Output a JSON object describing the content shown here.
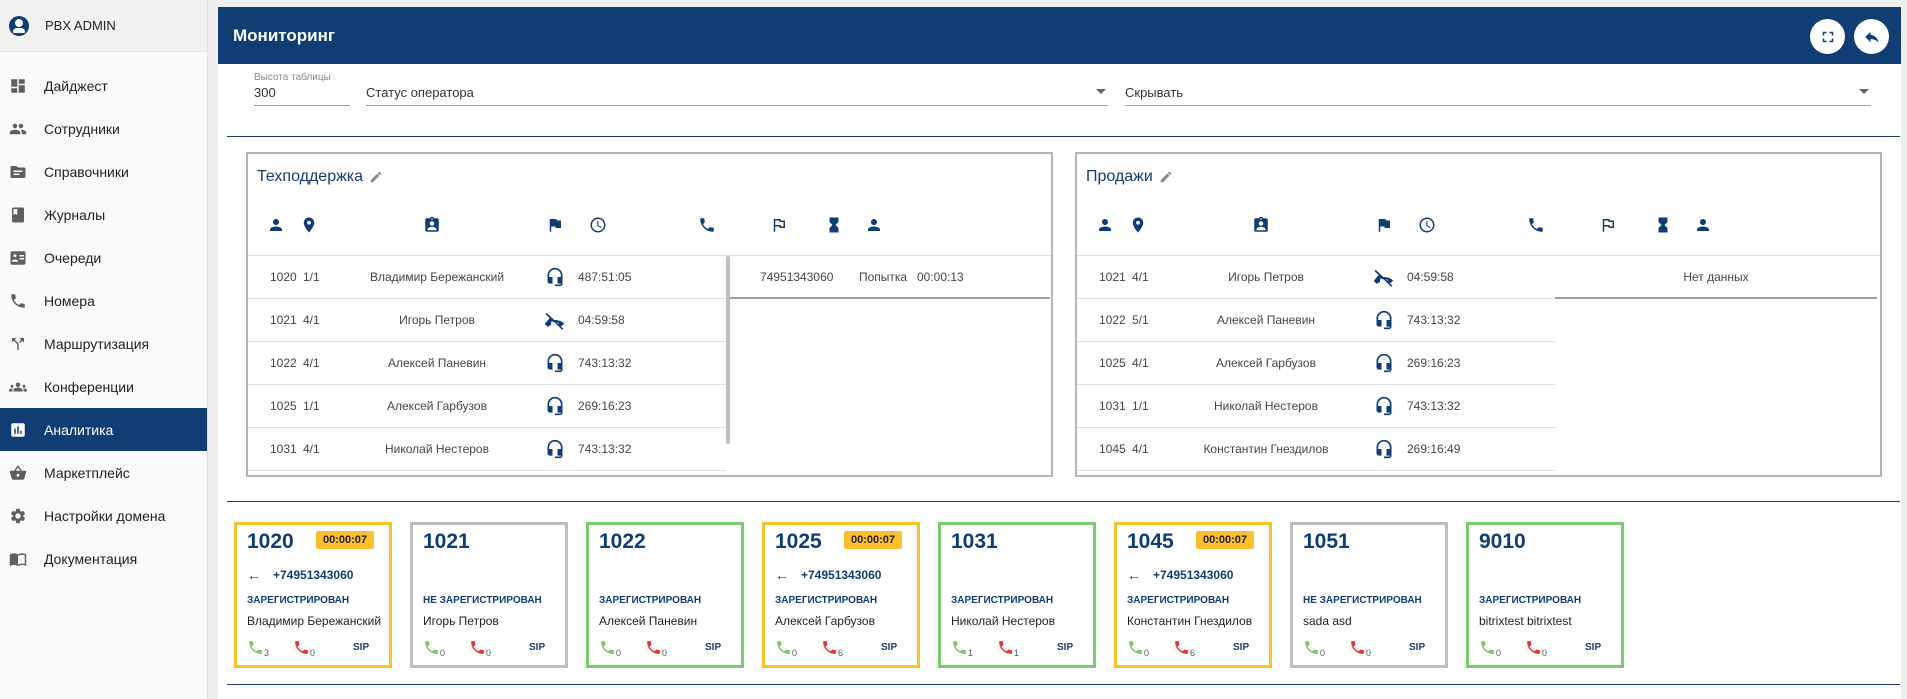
{
  "sidebar": {
    "user": "PBX ADMIN",
    "items": [
      {
        "label": "Дайджест",
        "icon": "dashboard-icon"
      },
      {
        "label": "Сотрудники",
        "icon": "people-icon"
      },
      {
        "label": "Справочники",
        "icon": "folder-icon"
      },
      {
        "label": "Журналы",
        "icon": "book-icon"
      },
      {
        "label": "Очереди",
        "icon": "queue-icon"
      },
      {
        "label": "Номера",
        "icon": "phone-icon"
      },
      {
        "label": "Маршрутизация",
        "icon": "route-icon"
      },
      {
        "label": "Конференции",
        "icon": "groups-icon"
      },
      {
        "label": "Аналитика",
        "icon": "analytics-icon"
      },
      {
        "label": "Маркетплейс",
        "icon": "basket-icon"
      },
      {
        "label": "Настройки домена",
        "icon": "gear-icon"
      },
      {
        "label": "Документация",
        "icon": "docs-icon"
      }
    ],
    "active_index": 8
  },
  "header": {
    "title": "Мониторинг"
  },
  "filters": {
    "height_label": "Высота таблицы",
    "height_value": "300",
    "status_value": "Статус оператора",
    "hide_value": "Скрывать"
  },
  "groups": [
    {
      "title": "Техподдержка",
      "rows": [
        {
          "ext": "1020",
          "pos": "1/1",
          "name": "Владимир Бережанский",
          "status": "headset-icon",
          "time": "487:51:05"
        },
        {
          "ext": "1021",
          "pos": "4/1",
          "name": "Игорь Петров",
          "status": "phone-off-icon",
          "time": "04:59:58"
        },
        {
          "ext": "1022",
          "pos": "4/1",
          "name": "Алексей Паневин",
          "status": "headset-icon",
          "time": "743:13:32"
        },
        {
          "ext": "1025",
          "pos": "1/1",
          "name": "Алексей Гарбузов",
          "status": "headset-icon",
          "time": "269:16:23"
        },
        {
          "ext": "1031",
          "pos": "4/1",
          "name": "Николай Нестеров",
          "status": "headset-icon",
          "time": "743:13:32"
        }
      ],
      "calls": [
        {
          "number": "74951343060",
          "state": "Попытка",
          "duration": "00:00:13"
        }
      ]
    },
    {
      "title": "Продажи",
      "rows": [
        {
          "ext": "1021",
          "pos": "4/1",
          "name": "Игорь Петров",
          "status": "phone-off-icon",
          "time": "04:59:58"
        },
        {
          "ext": "1022",
          "pos": "5/1",
          "name": "Алексей Паневин",
          "status": "headset-icon",
          "time": "743:13:32"
        },
        {
          "ext": "1025",
          "pos": "4/1",
          "name": "Алексей Гарбузов",
          "status": "headset-icon",
          "time": "269:16:23"
        },
        {
          "ext": "1031",
          "pos": "1/1",
          "name": "Николай Нестеров",
          "status": "headset-icon",
          "time": "743:13:32"
        },
        {
          "ext": "1045",
          "pos": "4/1",
          "name": "Константин Гнездилов",
          "status": "headset-icon",
          "time": "269:16:49"
        }
      ],
      "no_data": "Нет данных"
    }
  ],
  "cards": [
    {
      "ext": "1020",
      "timer": "00:00:07",
      "direction": "+74951343060",
      "registration": "ЗАРЕГИСТРИРОВАН",
      "name": "Владимир Бережанский",
      "ok": "3",
      "missed": "0",
      "proto": "SIP",
      "color": "yellow"
    },
    {
      "ext": "1021",
      "timer": "",
      "direction": "",
      "registration": "НЕ ЗАРЕГИСТРИРОВАН",
      "name": "Игорь Петров",
      "ok": "0",
      "missed": "0",
      "proto": "SIP",
      "color": "grey"
    },
    {
      "ext": "1022",
      "timer": "",
      "direction": "",
      "registration": "ЗАРЕГИСТРИРОВАН",
      "name": "Алексей Паневин",
      "ok": "0",
      "missed": "0",
      "proto": "SIP",
      "color": "green"
    },
    {
      "ext": "1025",
      "timer": "00:00:07",
      "direction": "+74951343060",
      "registration": "ЗАРЕГИСТРИРОВАН",
      "name": "Алексей Гарбузов",
      "ok": "0",
      "missed": "6",
      "proto": "SIP",
      "color": "yellow"
    },
    {
      "ext": "1031",
      "timer": "",
      "direction": "",
      "registration": "ЗАРЕГИСТРИРОВАН",
      "name": "Николай Нестеров",
      "ok": "1",
      "missed": "1",
      "proto": "SIP",
      "color": "green"
    },
    {
      "ext": "1045",
      "timer": "00:00:07",
      "direction": "+74951343060",
      "registration": "ЗАРЕГИСТРИРОВАН",
      "name": "Константин Гнездилов",
      "ok": "0",
      "missed": "6",
      "proto": "SIP",
      "color": "yellow"
    },
    {
      "ext": "1051",
      "timer": "",
      "direction": "",
      "registration": "НЕ ЗАРЕГИСТРИРОВАН",
      "name": "sada asd",
      "ok": "0",
      "missed": "0",
      "proto": "SIP",
      "color": "grey"
    },
    {
      "ext": "9010",
      "timer": "",
      "direction": "",
      "registration": "ЗАРЕГИСТРИРОВАН",
      "name": "bitrixtest bitrixtest",
      "ok": "0",
      "missed": "0",
      "proto": "SIP",
      "color": "green"
    }
  ],
  "colors": {
    "primary": "#103d73",
    "green": "#7dcb6f",
    "yellow": "#fcc02f",
    "grey": "#bdbdbd",
    "missed": "#e53935"
  }
}
